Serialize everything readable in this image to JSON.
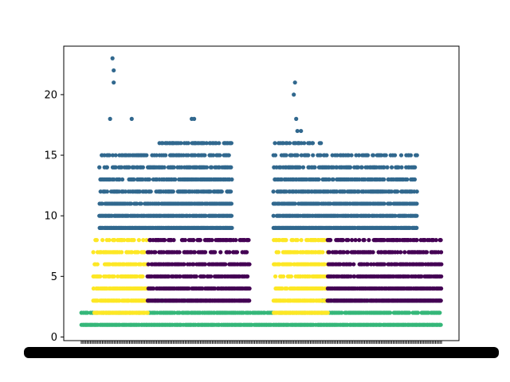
{
  "chart_data": {
    "type": "scatter",
    "title": "",
    "xlabel": "",
    "ylabel": "",
    "xlim": [
      0,
      300
    ],
    "ylim": [
      -0.3,
      24
    ],
    "y_ticks": [
      0,
      5,
      10,
      15,
      20
    ],
    "x_tick_count": 240,
    "grid": false,
    "legend": "none",
    "colors": {
      "yellow": "#fde725",
      "purple": "#440154",
      "teal": "#31688e",
      "green": "#35b779"
    },
    "series": [
      {
        "color_key": "green",
        "segments": [
          {
            "x0": 0,
            "x1": 55,
            "ys": [
              1,
              2
            ]
          },
          {
            "x0": 55,
            "x1": 110,
            "ys": [
              1,
              2,
              3
            ]
          },
          {
            "x0": 110,
            "x1": 150,
            "ys": [
              1,
              2
            ]
          },
          {
            "x0": 150,
            "x1": 200,
            "ys": [
              1,
              2
            ]
          },
          {
            "x0": 200,
            "x1": 300,
            "ys": [
              1,
              2,
              3
            ]
          }
        ]
      },
      {
        "color_key": "yellow",
        "segments": [
          {
            "x0": 10,
            "x1": 55,
            "ys": [
              2,
              3,
              4,
              5,
              6,
              7,
              8
            ]
          },
          {
            "x0": 160,
            "x1": 205,
            "ys": [
              2,
              3,
              4,
              5,
              6,
              7,
              8
            ]
          }
        ]
      },
      {
        "color_key": "purple",
        "segments": [
          {
            "x0": 55,
            "x1": 140,
            "ys": [
              3,
              4,
              5,
              6,
              7,
              8
            ]
          },
          {
            "x0": 205,
            "x1": 300,
            "ys": [
              3,
              4,
              5,
              6,
              7,
              8
            ]
          }
        ]
      },
      {
        "color_key": "teal",
        "segments": [
          {
            "x0": 15,
            "x1": 65,
            "ys": [
              9,
              10,
              11,
              12,
              13,
              14,
              15
            ]
          },
          {
            "x0": 65,
            "x1": 125,
            "ys": [
              9,
              10,
              11,
              12,
              13,
              14,
              15,
              16
            ]
          },
          {
            "x0": 160,
            "x1": 200,
            "ys": [
              9,
              10,
              11,
              12,
              13,
              14,
              15,
              16
            ]
          },
          {
            "x0": 200,
            "x1": 280,
            "ys": [
              9,
              10,
              11,
              12,
              13,
              14,
              15
            ]
          }
        ],
        "outliers": [
          {
            "x": 26,
            "y": 23
          },
          {
            "x": 27,
            "y": 22
          },
          {
            "x": 27,
            "y": 21
          },
          {
            "x": 24,
            "y": 18
          },
          {
            "x": 42,
            "y": 18
          },
          {
            "x": 92,
            "y": 18
          },
          {
            "x": 94,
            "y": 18
          },
          {
            "x": 95,
            "y": 16
          },
          {
            "x": 76,
            "y": 16
          },
          {
            "x": 83,
            "y": 16
          },
          {
            "x": 178,
            "y": 21
          },
          {
            "x": 177,
            "y": 20
          },
          {
            "x": 179,
            "y": 18
          },
          {
            "x": 180,
            "y": 17
          },
          {
            "x": 183,
            "y": 17
          },
          {
            "x": 181,
            "y": 16
          }
        ]
      }
    ]
  }
}
